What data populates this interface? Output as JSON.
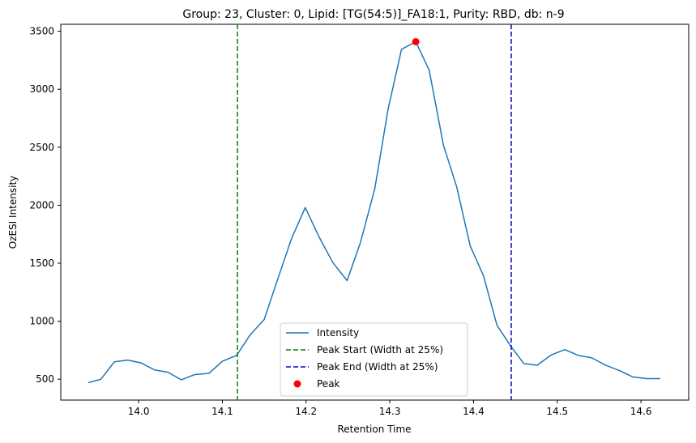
{
  "chart_data": {
    "type": "line",
    "title": "Group: 23, Cluster: 0, Lipid: [TG(54:5)]_FA18:1, Purity: RBD, db: n-9",
    "xlabel": "Retention Time",
    "ylabel": "OzESI Intensity",
    "xlim": [
      13.907,
      14.657
    ],
    "ylim": [
      320,
      3560
    ],
    "xticks": [
      14.0,
      14.1,
      14.2,
      14.3,
      14.4,
      14.5,
      14.6
    ],
    "xtick_labels": [
      "14.0",
      "14.1",
      "14.2",
      "14.3",
      "14.4",
      "14.5",
      "14.6"
    ],
    "yticks": [
      500,
      1000,
      1500,
      2000,
      2500,
      3000,
      3500
    ],
    "ytick_labels": [
      "500",
      "1000",
      "1500",
      "2000",
      "2500",
      "3000",
      "3500"
    ],
    "grid": false,
    "series": [
      {
        "name": "Intensity",
        "color": "#1f77b4",
        "x": [
          13.94,
          13.955,
          13.971,
          13.987,
          14.003,
          14.019,
          14.035,
          14.051,
          14.067,
          14.084,
          14.1,
          14.117,
          14.133,
          14.15,
          14.166,
          14.183,
          14.199,
          14.216,
          14.232,
          14.249,
          14.265,
          14.282,
          14.298,
          14.314,
          14.331,
          14.347,
          14.364,
          14.38,
          14.396,
          14.412,
          14.428,
          14.444,
          14.46,
          14.476,
          14.493,
          14.509,
          14.525,
          14.541,
          14.558,
          14.574,
          14.59,
          14.607,
          14.623
        ],
        "y": [
          470,
          500,
          650,
          665,
          640,
          580,
          560,
          495,
          540,
          550,
          655,
          705,
          880,
          1015,
          1360,
          1720,
          1980,
          1720,
          1505,
          1350,
          1680,
          2140,
          2830,
          3345,
          3410,
          3165,
          2520,
          2155,
          1650,
          1390,
          965,
          790,
          635,
          620,
          710,
          755,
          705,
          685,
          620,
          575,
          520,
          505,
          505
        ]
      }
    ],
    "vlines": [
      {
        "name": "Peak Start (Width at 25%)",
        "x": 14.118,
        "color": "#008000",
        "style": "dashed"
      },
      {
        "name": "Peak End (Width at 25%)",
        "x": 14.445,
        "color": "#0000cc",
        "style": "dashed"
      }
    ],
    "peak": {
      "name": "Peak",
      "x": 14.331,
      "y": 3410,
      "color": "#ff0000"
    },
    "legend": {
      "placement": "lower center",
      "entries": [
        "Intensity",
        "Peak Start (Width at 25%)",
        "Peak End (Width at 25%)",
        "Peak"
      ]
    }
  }
}
